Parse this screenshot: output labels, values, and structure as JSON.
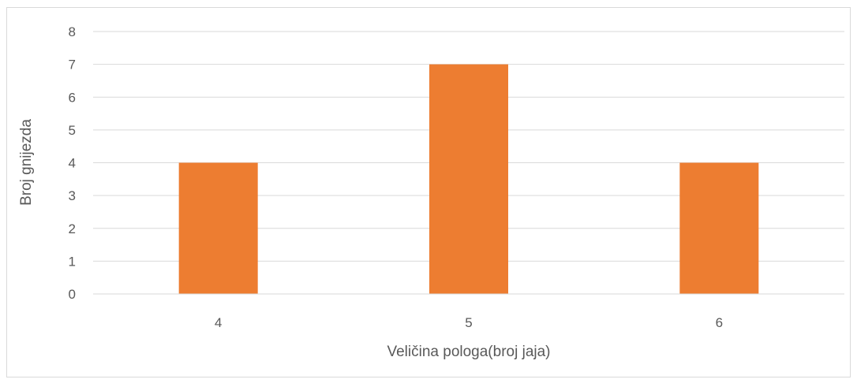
{
  "chart_data": {
    "type": "bar",
    "title": "",
    "xlabel": "Veličina pologa(broj jaja)",
    "ylabel": "Broj gnijezda",
    "categories": [
      "4",
      "5",
      "6"
    ],
    "values": [
      4,
      7,
      4
    ],
    "ylim": [
      0,
      8
    ],
    "yticks": [
      0,
      1,
      2,
      3,
      4,
      5,
      6,
      7,
      8
    ],
    "grid": true,
    "legend": "none",
    "colors": {
      "bar": "#ed7d31",
      "grid": "#d9d9d9",
      "axis": "#d9d9d9",
      "text": "#595959"
    }
  }
}
